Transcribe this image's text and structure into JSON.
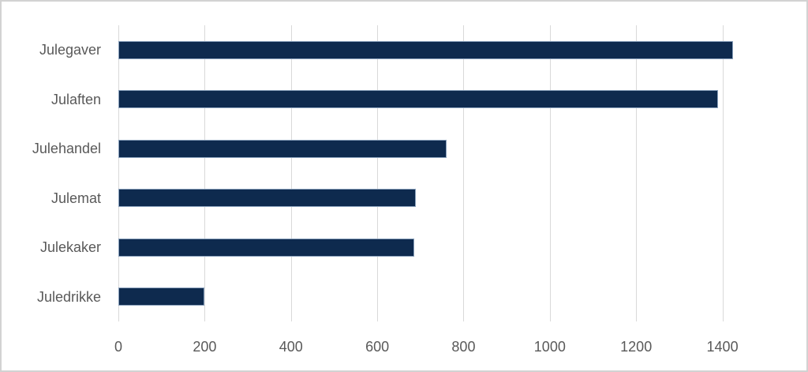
{
  "chart_data": {
    "type": "bar",
    "orientation": "horizontal",
    "title": "",
    "xlabel": "",
    "ylabel": "",
    "categories": [
      "Julegaver",
      "Julaften",
      "Julehandel",
      "Julemat",
      "Julekaker",
      "Juledrikke"
    ],
    "values": [
      1425,
      1390,
      760,
      690,
      685,
      200
    ],
    "xticks": [
      0,
      200,
      400,
      600,
      800,
      1000,
      1200,
      1400
    ],
    "xtick_labels": [
      "0",
      "200",
      "400",
      "600",
      "800",
      "1000",
      "1200",
      "1400"
    ],
    "xlim": [
      0,
      1580
    ],
    "grid": "vertical-major-only",
    "legend": "none",
    "colors": {
      "bar_fill": "#0e2a4e",
      "bar_border": "#8ba2bd",
      "gridline": "#d9d9d9",
      "axis_line": "#d9d9d9",
      "label_text": "#595959",
      "frame_border": "#d2d2d2",
      "background": "#ffffff"
    }
  }
}
